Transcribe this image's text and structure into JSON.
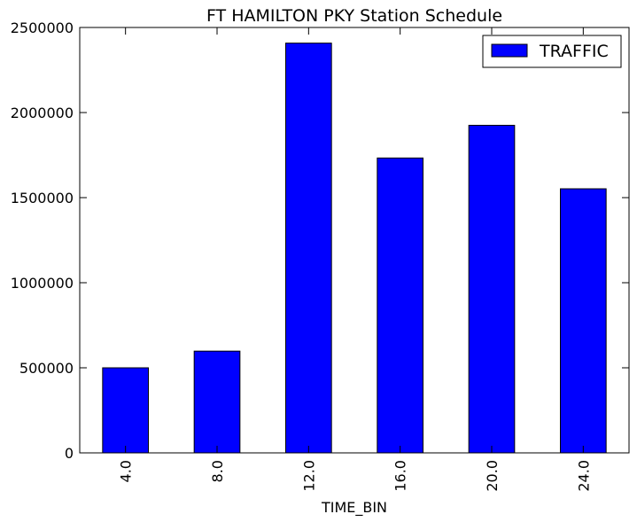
{
  "chart_data": {
    "type": "bar",
    "title": "FT HAMILTON PKY Station Schedule",
    "xlabel": "TIME_BIN",
    "ylabel": "",
    "categories": [
      "4.0",
      "8.0",
      "12.0",
      "16.0",
      "20.0",
      "24.0"
    ],
    "series": [
      {
        "name": "TRAFFIC",
        "color": "#0000ff",
        "values": [
          500000,
          598000,
          2408000,
          1733000,
          1925000,
          1552000
        ]
      }
    ],
    "ylim": [
      0,
      2500000
    ],
    "yticks": [
      0,
      500000,
      1000000,
      1500000,
      2000000,
      2500000
    ],
    "ytick_labels": [
      "0",
      "500000",
      "1000000",
      "1500000",
      "2000000",
      "2500000"
    ],
    "grid": false,
    "legend_position": "top-right"
  }
}
